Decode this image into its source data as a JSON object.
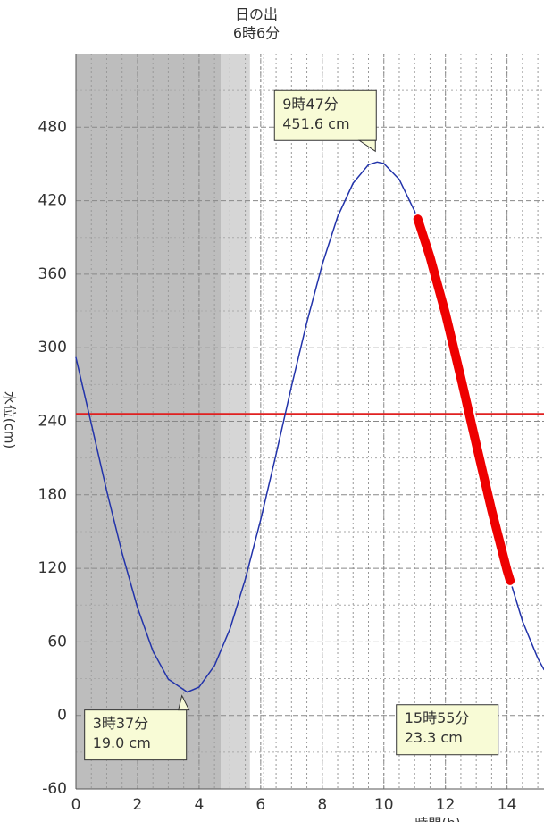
{
  "chart_data": {
    "type": "line",
    "ylabel": "水位(cm)",
    "xlabel": "時間(h)",
    "xlim": [
      0,
      15.2
    ],
    "ylim": [
      -60,
      540
    ],
    "xticks": [
      0,
      2,
      4,
      6,
      8,
      10,
      12,
      14
    ],
    "yticks": [
      -60,
      0,
      60,
      120,
      180,
      240,
      300,
      360,
      420,
      480
    ],
    "grid": true,
    "night_bands": [
      {
        "from": 0,
        "to": 4.7,
        "color": "#bdbdbd"
      },
      {
        "from": 4.7,
        "to": 5.65,
        "color": "#d6d6d6"
      }
    ],
    "sunrise": {
      "x": 6.1,
      "lines": [
        "日の出",
        "6時6分"
      ]
    },
    "reference_line": {
      "value": 246,
      "color": "#e02020"
    },
    "series": [
      {
        "color": "#2233aa",
        "x": [
          0,
          0.5,
          1,
          1.5,
          2,
          2.5,
          3,
          3.617,
          4,
          4.5,
          5,
          5.5,
          6,
          6.5,
          7,
          7.5,
          8,
          8.5,
          9,
          9.5,
          9.783,
          10,
          10.5,
          11,
          11.5,
          12,
          12.5,
          13,
          13.5,
          14,
          14.5,
          15,
          15.2
        ],
        "values": [
          292,
          238,
          183,
          132.5,
          88,
          52.5,
          29.6,
          19.0,
          23.1,
          40.6,
          70.5,
          111.2,
          159.6,
          213.2,
          268.4,
          321,
          368,
          407,
          434.3,
          449.4,
          451.6,
          450.3,
          437.3,
          411.4,
          374.1,
          328,
          275.6,
          221,
          167.4,
          118.4,
          77,
          46.6,
          37.4
        ]
      },
      {
        "color": "#ee0000",
        "x": [
          11.1,
          11.5,
          12,
          12.5,
          13,
          13.5,
          14,
          14.1
        ],
        "values": [
          405,
          374.1,
          328,
          275.6,
          221,
          167.4,
          118.4,
          110
        ]
      }
    ],
    "annotations": [
      {
        "x": 9.783,
        "y": 451.6,
        "lines": [
          "9時47分",
          "451.6 cm"
        ],
        "position": "above"
      },
      {
        "x": 3.617,
        "y": 19.0,
        "lines": [
          "3時37分",
          "19.0 cm"
        ],
        "position": "below"
      },
      {
        "x": 15.917,
        "y": 23.3,
        "lines": [
          "15時55分",
          "23.3 cm"
        ],
        "position": "below"
      }
    ]
  }
}
